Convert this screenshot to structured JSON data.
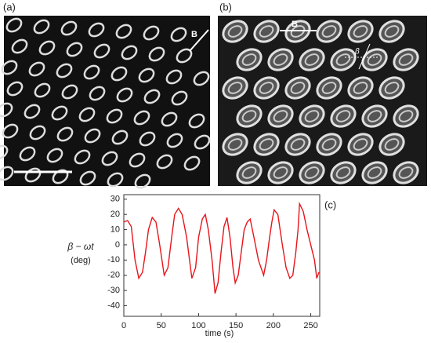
{
  "panels": [
    {
      "label": "(a)",
      "annotation": "B"
    },
    {
      "label": "(b)",
      "annotation": "B",
      "angle_label": "β"
    }
  ],
  "chart_data": {
    "type": "line",
    "panel_label": "(c)",
    "xlabel": "time (s)",
    "ylabel": [
      "β − ωt",
      "(deg)"
    ],
    "x": [
      0,
      5,
      10,
      15,
      20,
      25,
      29,
      33,
      38,
      43,
      48,
      54,
      59,
      64,
      68,
      73,
      78,
      84,
      91,
      96,
      100,
      105,
      109,
      113,
      118,
      122,
      126,
      130,
      134,
      138,
      142,
      146,
      149,
      153,
      157,
      161,
      165,
      169,
      174,
      180,
      187,
      191,
      195,
      198,
      201,
      206,
      212,
      217,
      222,
      226,
      230,
      233,
      235,
      240,
      245,
      250,
      255,
      258,
      261
    ],
    "series": [
      {
        "name": "β − ωt",
        "color": "#e8141a",
        "values": [
          15,
          16,
          12,
          -10,
          -22,
          -18,
          -5,
          10,
          18,
          15,
          0,
          -20,
          -15,
          5,
          20,
          24,
          20,
          5,
          -22,
          -15,
          5,
          17,
          20,
          10,
          -10,
          -32,
          -25,
          -5,
          12,
          18,
          5,
          -15,
          -25,
          -20,
          -5,
          10,
          15,
          17,
          5,
          -10,
          -20,
          -10,
          5,
          15,
          23,
          20,
          0,
          -15,
          -22,
          -20,
          -5,
          10,
          27,
          22,
          10,
          0,
          -10,
          -22,
          -18
        ]
      }
    ],
    "xlim": [
      0,
      262
    ],
    "xticks": [
      0,
      50,
      100,
      150,
      200,
      250
    ],
    "ylim": [
      -47,
      33
    ],
    "yticks": [
      -40,
      -30,
      -20,
      -10,
      0,
      10,
      20,
      30
    ]
  }
}
